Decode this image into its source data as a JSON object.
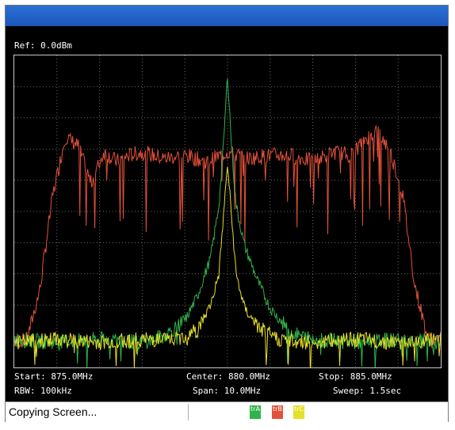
{
  "instrument": {
    "ref_level": "Ref: 0.0dBm"
  },
  "readouts": {
    "start": "Start: 875.0MHz",
    "center": "Center: 880.0MHz",
    "stop": "Stop: 885.0MHz",
    "rbw": "RBW: 100kHz",
    "span": "Span: 10.0MHz",
    "sweep": "Sweep: 1.5sec"
  },
  "status": {
    "message": "Copying Screen..."
  },
  "traces": [
    {
      "id": "trA",
      "label": "trA",
      "color": "#2fb34a"
    },
    {
      "id": "trB",
      "label": "trB",
      "color": "#e2513a"
    },
    {
      "id": "trC",
      "label": "trC",
      "color": "#e5e02a"
    }
  ],
  "chart_data": {
    "type": "line",
    "x_range_mhz": [
      875.0,
      885.0
    ],
    "y_divisions": 10,
    "x_divisions": 10,
    "grid": true,
    "series": [
      {
        "id": "trB",
        "color": "#e2513a",
        "x_mhz": [
          875.0,
          875.3,
          875.6,
          875.9,
          876.2,
          876.5,
          876.8,
          877.1,
          877.4,
          877.7,
          878.0,
          878.5,
          879.0,
          879.5,
          880.0,
          880.5,
          881.0,
          881.5,
          882.0,
          882.5,
          882.9,
          883.2,
          883.5,
          883.8,
          884.1,
          884.4,
          884.7,
          885.0
        ],
        "y_div": [
          0.8,
          0.9,
          2.5,
          5.5,
          7.4,
          7.1,
          5.9,
          6.9,
          6.6,
          6.8,
          6.9,
          6.7,
          6.8,
          6.6,
          6.9,
          6.7,
          6.8,
          6.8,
          6.6,
          6.9,
          6.8,
          7.3,
          7.6,
          7.0,
          5.6,
          2.6,
          0.9,
          0.8
        ]
      },
      {
        "id": "trA",
        "color": "#2fb34a",
        "x_mhz": [
          875.0,
          876.0,
          877.0,
          878.0,
          878.5,
          879.0,
          879.3,
          879.6,
          879.8,
          879.9,
          880.0,
          880.1,
          880.2,
          880.4,
          880.7,
          881.0,
          881.5,
          882.0,
          883.0,
          884.0,
          885.0
        ],
        "y_div": [
          0.9,
          0.8,
          0.9,
          0.8,
          1.0,
          1.5,
          2.3,
          3.5,
          5.2,
          7.0,
          9.4,
          7.0,
          5.2,
          3.9,
          2.8,
          1.9,
          1.1,
          0.9,
          0.8,
          0.9,
          0.8
        ]
      },
      {
        "id": "trC",
        "color": "#e5e02a",
        "x_mhz": [
          875.0,
          876.0,
          877.0,
          878.0,
          878.8,
          879.3,
          879.6,
          879.8,
          880.0,
          880.2,
          880.4,
          880.7,
          881.2,
          882.0,
          883.0,
          884.0,
          885.0
        ],
        "y_div": [
          0.8,
          0.9,
          0.8,
          0.9,
          0.9,
          1.2,
          2.0,
          3.0,
          6.5,
          3.0,
          1.9,
          1.3,
          0.9,
          0.8,
          0.9,
          0.8,
          0.9
        ]
      }
    ]
  }
}
